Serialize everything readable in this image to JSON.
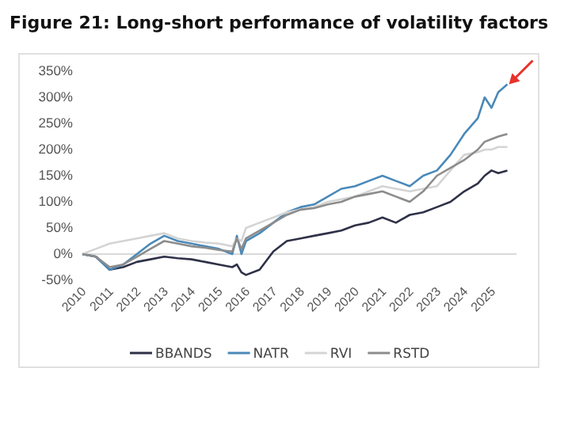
{
  "chart_data": {
    "type": "line",
    "title": "Figure 21: Long-short performance of volatility factors",
    "ylim": [
      -50,
      350
    ],
    "yticks": [
      {
        "value": -50,
        "label": "-50%"
      },
      {
        "value": 0,
        "label": "0%"
      },
      {
        "value": 50,
        "label": "50%"
      },
      {
        "value": 100,
        "label": "100%"
      },
      {
        "value": 150,
        "label": "150%"
      },
      {
        "value": 200,
        "label": "200%"
      },
      {
        "value": 250,
        "label": "250%"
      },
      {
        "value": 300,
        "label": "300%"
      },
      {
        "value": 350,
        "label": "350%"
      }
    ],
    "xlim": [
      "2010-01",
      "2025-12"
    ],
    "xticks": [
      "2010",
      "2011",
      "2012",
      "2013",
      "2014",
      "2015",
      "2016",
      "2017",
      "2018",
      "2019",
      "2020",
      "2021",
      "2022",
      "2023",
      "2024",
      "2025"
    ],
    "x": [
      "2010-01",
      "2010-07",
      "2011-01",
      "2011-07",
      "2012-01",
      "2012-07",
      "2013-01",
      "2013-07",
      "2014-01",
      "2014-07",
      "2015-01",
      "2015-07",
      "2015-09",
      "2015-11",
      "2016-01",
      "2016-07",
      "2017-01",
      "2017-07",
      "2018-01",
      "2018-07",
      "2019-01",
      "2019-07",
      "2020-01",
      "2020-07",
      "2021-01",
      "2021-07",
      "2022-01",
      "2022-07",
      "2023-01",
      "2023-07",
      "2024-01",
      "2024-07",
      "2024-10",
      "2025-01",
      "2025-04",
      "2025-08"
    ],
    "series": [
      {
        "name": "BBANDS",
        "color": "#2e3147",
        "values": [
          0,
          -5,
          -30,
          -25,
          -15,
          -10,
          -5,
          -8,
          -10,
          -15,
          -20,
          -25,
          -20,
          -35,
          -40,
          -30,
          5,
          25,
          30,
          35,
          40,
          45,
          55,
          60,
          70,
          60,
          75,
          80,
          90,
          100,
          120,
          135,
          150,
          160,
          155,
          160
        ]
      },
      {
        "name": "NATR",
        "color": "#4a89b8",
        "values": [
          0,
          -5,
          -30,
          -20,
          0,
          20,
          35,
          25,
          20,
          15,
          10,
          0,
          35,
          0,
          25,
          40,
          60,
          80,
          90,
          95,
          110,
          125,
          130,
          140,
          150,
          140,
          130,
          150,
          160,
          190,
          230,
          260,
          300,
          280,
          310,
          325
        ]
      },
      {
        "name": "RVI",
        "color": "#d4d4d4",
        "values": [
          0,
          10,
          20,
          25,
          30,
          35,
          40,
          30,
          25,
          22,
          20,
          15,
          30,
          25,
          50,
          60,
          70,
          80,
          85,
          90,
          100,
          105,
          110,
          120,
          130,
          125,
          120,
          125,
          130,
          160,
          190,
          195,
          200,
          200,
          205,
          205
        ]
      },
      {
        "name": "RSTD",
        "color": "#8c8c8c",
        "values": [
          0,
          -5,
          -25,
          -20,
          -5,
          10,
          25,
          20,
          15,
          12,
          8,
          5,
          30,
          10,
          30,
          45,
          60,
          75,
          85,
          88,
          95,
          100,
          110,
          115,
          120,
          110,
          100,
          120,
          150,
          165,
          180,
          200,
          215,
          220,
          225,
          230
        ]
      }
    ],
    "legend": "bottom"
  }
}
